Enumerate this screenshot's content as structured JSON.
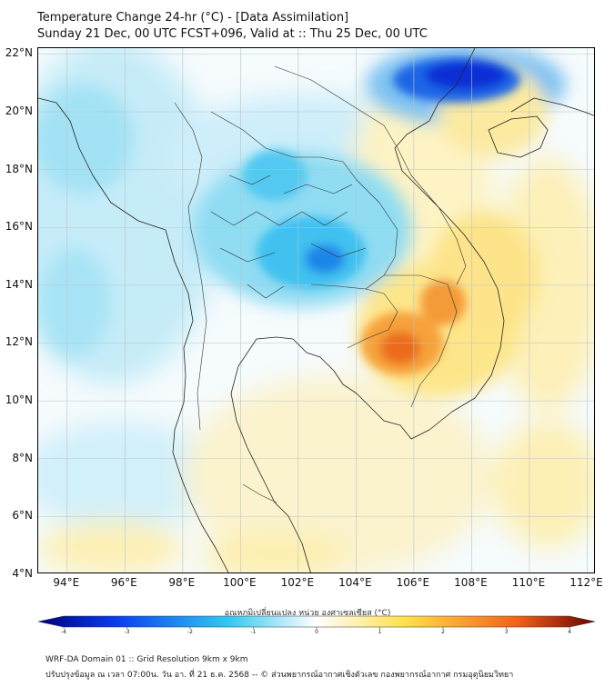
{
  "title": {
    "line1": "Temperature Change 24-hr (°C) - [Data Assimilation]",
    "line2": "Sunday 21 Dec, 00 UTC FCST+096, Valid at :: Thu 25 Dec, 00 UTC"
  },
  "map": {
    "lat_labels": [
      "22°N",
      "20°N",
      "18°N",
      "16°N",
      "14°N",
      "12°N",
      "10°N",
      "8°N",
      "6°N",
      "4°N"
    ],
    "lon_labels": [
      "94°E",
      "96°E",
      "98°E",
      "100°E",
      "102°E",
      "104°E",
      "106°E",
      "108°E",
      "110°E",
      "112°E"
    ],
    "lat_values": [
      22,
      20,
      18,
      16,
      14,
      12,
      10,
      8,
      6,
      4
    ],
    "lon_values": [
      94,
      96,
      98,
      100,
      102,
      104,
      106,
      108,
      110,
      112
    ],
    "lon_range": [
      93,
      112.3
    ],
    "lat_range": [
      4,
      22.2
    ],
    "features": [
      {
        "name": "cold-core-northern-vietnam",
        "lon": 107.6,
        "lat": 21.3,
        "value": -3.5
      },
      {
        "name": "cold-area-northeast-thailand",
        "lon": 102.8,
        "lat": 15.1,
        "value": -2.0
      },
      {
        "name": "cold-area-northern-thailand",
        "lon": 101.2,
        "lat": 18.0,
        "value": -1.5
      },
      {
        "name": "warm-core-cambodia",
        "lon": 106.0,
        "lat": 11.8,
        "value": 2.5
      },
      {
        "name": "warm-area-southern-vietnam",
        "lon": 107.2,
        "lat": 13.4,
        "value": 2.2
      }
    ]
  },
  "colorbar": {
    "title": "อุณหภูมิเปลี่ยนแปลง หน่วย องศาเซลเซียส (°C)",
    "tick_values": [
      -4,
      -3,
      -2,
      -1,
      0,
      1,
      2,
      3,
      4
    ],
    "tick_labels": [
      "-4",
      "-3",
      "-2",
      "-1",
      "0",
      "1",
      "2",
      "3",
      "4"
    ],
    "range": [
      -4,
      4
    ],
    "colors": {
      "darkest_cold": "#00007a",
      "cold": "#0a3cf0",
      "cool": "#32c8f0",
      "neutral": "#ffffff",
      "warm": "#ffe04a",
      "hot": "#f2621a",
      "darkest_hot": "#6e0000"
    }
  },
  "footer": {
    "line1": "WRF-DA Domain 01 :: Grid Resolution 9km x 9km",
    "line2": "ปรับปรุงข้อมูล ณ เวลา 07:00น. วัน อา. ที่ 21 ธ.ค. 2568 -- © ส่วนพยากรณ์อากาศเชิงตัวเลข กองพยากรณ์อากาศ กรมอุตุนิยมวิทยา"
  }
}
